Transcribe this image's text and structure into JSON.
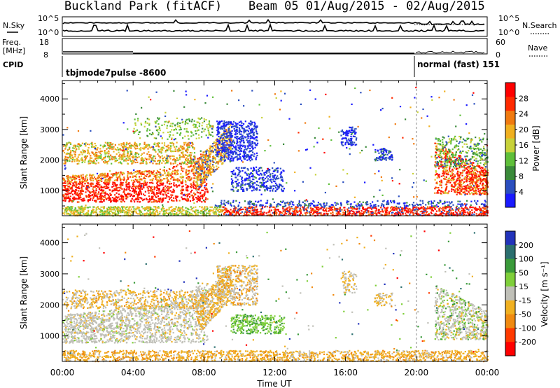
{
  "header": {
    "title": "Buckland Park (fitACF)",
    "beam": "Beam 05 01/Aug/2015 - 02/Aug/2015"
  },
  "top_panels": {
    "nsky_label": "N.Sky",
    "nsky_ticks": [
      "10^5",
      "10^0"
    ],
    "nsearch_label": "N.Search",
    "nsearch_ticks": [
      "10^5",
      "10^0"
    ],
    "freq_label_1": "Freq.",
    "freq_label_2": "[MHz]",
    "freq_ticks": [
      "18",
      "8"
    ],
    "nave_label": "Nave",
    "nave_ticks": [
      "60",
      "0"
    ],
    "cpid_label": "CPID",
    "cpid_segments": [
      {
        "text": "tbjmode7pulse -8600",
        "start_hour": 0,
        "end_hour": 20
      },
      {
        "text": "normal (fast) 151",
        "start_hour": 20,
        "end_hour": 24
      }
    ]
  },
  "chart_data": [
    {
      "type": "heatmap",
      "name": "power",
      "ylabel": "Slant Range [km]",
      "xlabel": "Time UT",
      "x_ticks": [
        "00:00",
        "04:00",
        "08:00",
        "12:00",
        "16:00",
        "20:00",
        "00:00"
      ],
      "x_range_hours": [
        0,
        24
      ],
      "y_ticks": [
        "1000",
        "2000",
        "3000",
        "4000"
      ],
      "ylim": [
        180,
        4600
      ],
      "colorbar_label": "Power [dB]",
      "colorbar_ticks": [
        "4",
        "8",
        "12",
        "16",
        "20",
        "24",
        "28"
      ],
      "colorbar_range": [
        0,
        32
      ],
      "colorbar_colors": [
        "#1a1aff",
        "#2b4fbf",
        "#3a8a3a",
        "#5fbf3a",
        "#c8d23a",
        "#f0b020",
        "#f07a10",
        "#ff2a00",
        "#ff0000"
      ]
    },
    {
      "type": "heatmap",
      "name": "velocity",
      "ylabel": "Slant Range [km]",
      "xlabel": "Time UT",
      "x_ticks": [
        "00:00",
        "04:00",
        "08:00",
        "12:00",
        "16:00",
        "20:00",
        "00:00"
      ],
      "x_range_hours": [
        0,
        24
      ],
      "y_ticks": [
        "1000",
        "2000",
        "3000",
        "4000"
      ],
      "ylim": [
        180,
        4600
      ],
      "colorbar_label": "Velocity [m s⁻¹]",
      "colorbar_ticks": [
        "200",
        "100",
        "50",
        "15",
        "-15",
        "-50",
        "-100",
        "-200"
      ],
      "colorbar_colors": [
        "#2233bb",
        "#2b6f6f",
        "#3a9a3a",
        "#7fcf3a",
        "#c0c0b8",
        "#f0b020",
        "#f08a10",
        "#ff3a00",
        "#ff0000"
      ]
    }
  ]
}
